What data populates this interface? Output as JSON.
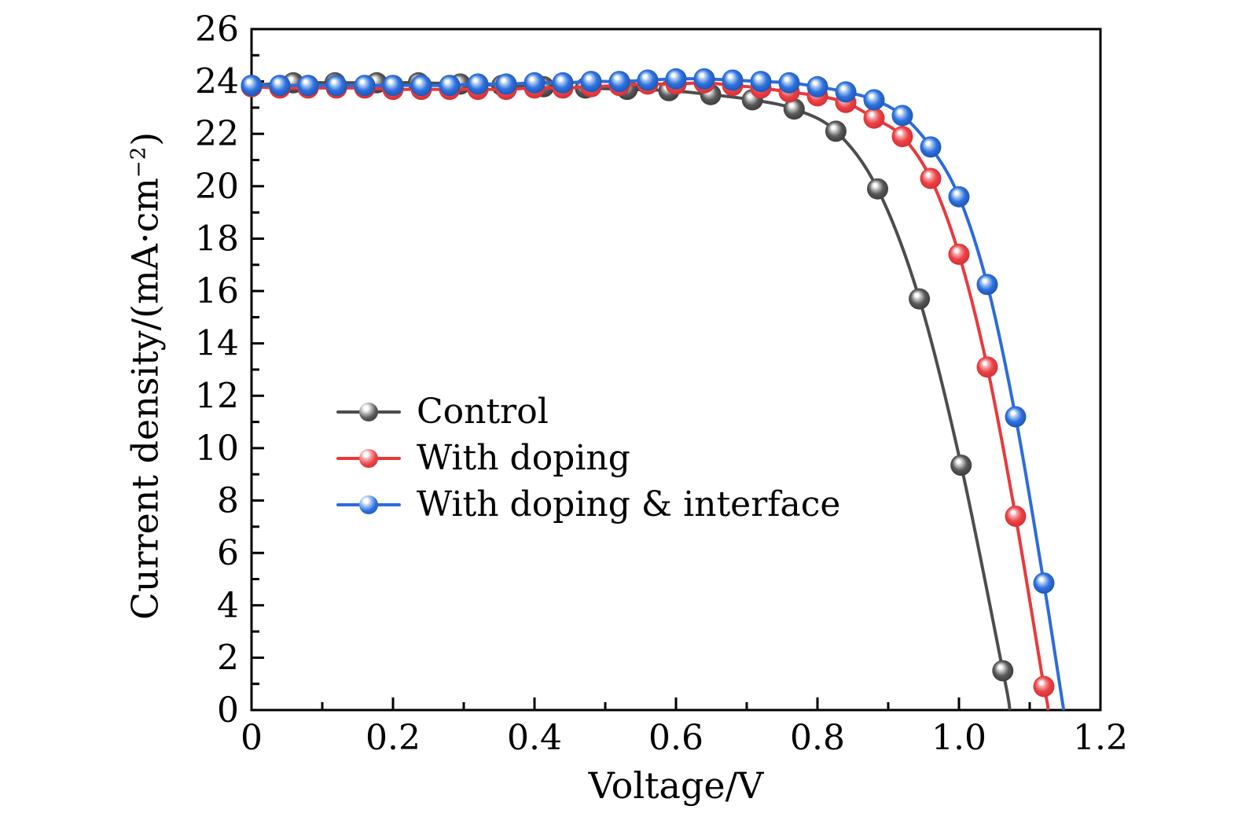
{
  "chart_data": {
    "type": "line",
    "title": "",
    "xlabel": "Voltage/V",
    "ylabel": "Current density/(mA·cm⁻²)",
    "ylabel_parts": {
      "main": "Current density/(mA·cm",
      "sup": "−2",
      "close": ")"
    },
    "xlim": [
      0,
      1.2
    ],
    "ylim": [
      0,
      26
    ],
    "grid": false,
    "background": "#ffffff",
    "axis_color": "#000000",
    "text_color": "#000000",
    "legend_position": "center-left",
    "x_ticks": {
      "major": [
        {
          "v": 0.0,
          "label": "0"
        },
        {
          "v": 0.2,
          "label": "0.2"
        },
        {
          "v": 0.4,
          "label": "0.4"
        },
        {
          "v": 0.6,
          "label": "0.6"
        },
        {
          "v": 0.8,
          "label": "0.8"
        },
        {
          "v": 1.0,
          "label": "1.0"
        },
        {
          "v": 1.2,
          "label": "1.2"
        }
      ],
      "minor_step": 0.1
    },
    "y_ticks": {
      "major": [
        {
          "v": 0,
          "label": "0"
        },
        {
          "v": 2,
          "label": "2"
        },
        {
          "v": 4,
          "label": "4"
        },
        {
          "v": 6,
          "label": "6"
        },
        {
          "v": 8,
          "label": "8"
        },
        {
          "v": 10,
          "label": "10"
        },
        {
          "v": 12,
          "label": "12"
        },
        {
          "v": 14,
          "label": "14"
        },
        {
          "v": 16,
          "label": "16"
        },
        {
          "v": 18,
          "label": "18"
        },
        {
          "v": 20,
          "label": "20"
        },
        {
          "v": 22,
          "label": "22"
        },
        {
          "v": 24,
          "label": "24"
        },
        {
          "v": 26,
          "label": "26"
        }
      ],
      "minor_step": 1
    },
    "series": [
      {
        "name": "Control",
        "color": "#4d4d4d",
        "marker": {
          "highlight": "#ffffff",
          "light": "#c9c9c9",
          "body": "#595959",
          "dark": "#2f2f2f"
        },
        "x": [
          0.0,
          0.059,
          0.118,
          0.177,
          0.236,
          0.295,
          0.354,
          0.413,
          0.472,
          0.531,
          0.59,
          0.649,
          0.708,
          0.767,
          0.826,
          0.885,
          0.944,
          1.003,
          1.062
        ],
        "y": [
          23.85,
          23.95,
          23.95,
          23.95,
          23.95,
          23.9,
          23.85,
          23.8,
          23.75,
          23.7,
          23.65,
          23.5,
          23.3,
          22.95,
          22.1,
          19.9,
          15.7,
          9.35,
          1.5
        ],
        "open_circuit_voltage": 1.072,
        "end": [
          1.072,
          0
        ]
      },
      {
        "name": "With doping",
        "color": "#e8393d",
        "marker": {
          "highlight": "#ffffff",
          "light": "#f6a9ab",
          "body": "#ec4246",
          "dark": "#c9272e"
        },
        "x": [
          0.0,
          0.04,
          0.08,
          0.12,
          0.16,
          0.2,
          0.24,
          0.28,
          0.32,
          0.36,
          0.4,
          0.44,
          0.48,
          0.52,
          0.56,
          0.6,
          0.64,
          0.68,
          0.72,
          0.76,
          0.8,
          0.84,
          0.88,
          0.92,
          0.96,
          1.0,
          1.04,
          1.08,
          1.12
        ],
        "y": [
          23.8,
          23.75,
          23.75,
          23.75,
          23.75,
          23.7,
          23.7,
          23.7,
          23.7,
          23.7,
          23.75,
          23.75,
          23.8,
          23.85,
          23.9,
          23.9,
          23.95,
          23.85,
          23.75,
          23.6,
          23.45,
          23.2,
          22.6,
          21.9,
          20.3,
          17.4,
          13.1,
          7.4,
          0.9
        ],
        "open_circuit_voltage": 1.126,
        "end": [
          1.126,
          0
        ]
      },
      {
        "name": "With doping & interface",
        "color": "#2e6bdb",
        "marker": {
          "highlight": "#ffffff",
          "light": "#aecbf2",
          "body": "#2e72e0",
          "dark": "#17489f"
        },
        "x": [
          0.0,
          0.04,
          0.08,
          0.12,
          0.16,
          0.2,
          0.24,
          0.28,
          0.32,
          0.36,
          0.4,
          0.44,
          0.48,
          0.52,
          0.56,
          0.6,
          0.64,
          0.68,
          0.72,
          0.76,
          0.8,
          0.84,
          0.88,
          0.92,
          0.96,
          1.0,
          1.04,
          1.08,
          1.12
        ],
        "y": [
          23.85,
          23.85,
          23.85,
          23.85,
          23.85,
          23.85,
          23.85,
          23.85,
          23.9,
          23.9,
          23.95,
          23.95,
          24.0,
          24.0,
          24.05,
          24.1,
          24.1,
          24.05,
          24.0,
          23.95,
          23.8,
          23.6,
          23.3,
          22.7,
          21.5,
          19.6,
          16.25,
          11.2,
          4.85
        ],
        "open_circuit_voltage": 1.148,
        "end": [
          1.148,
          0
        ]
      }
    ]
  }
}
